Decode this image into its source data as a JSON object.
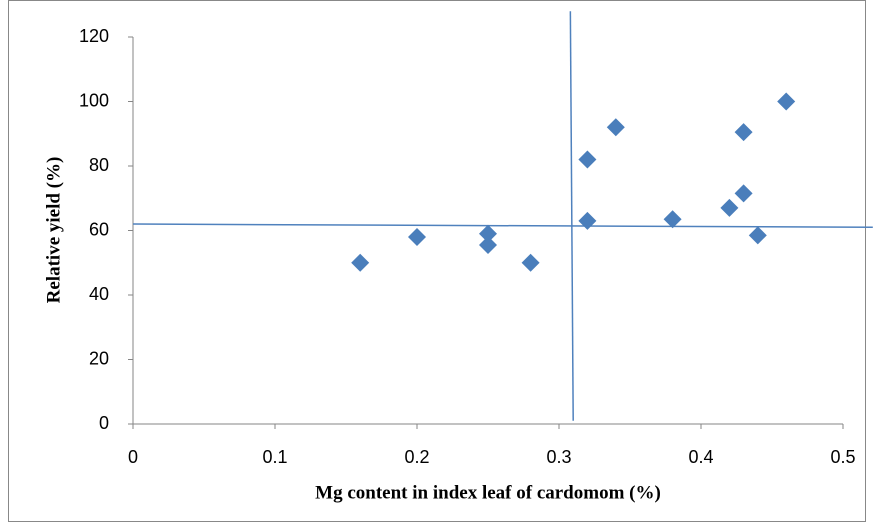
{
  "chart_data": {
    "type": "scatter",
    "x_label": "Mg content in index leaf of cardomom (%)",
    "y_label": "Relative yield  (%)",
    "x": [
      0.16,
      0.2,
      0.25,
      0.25,
      0.28,
      0.32,
      0.32,
      0.34,
      0.38,
      0.42,
      0.43,
      0.43,
      0.44,
      0.46
    ],
    "series": [
      {
        "name": "Relative yield",
        "color": "#4a7ebb",
        "values": [
          50,
          58,
          59,
          55.5,
          50,
          63,
          82,
          92,
          63.5,
          67,
          90.5,
          71.5,
          58.5,
          100
        ]
      }
    ],
    "xlim": [
      0,
      0.5
    ],
    "xticks": [
      0,
      0.1,
      0.2,
      0.3,
      0.4,
      0.5
    ],
    "ylim": [
      0,
      120
    ],
    "yticks": [
      0,
      20,
      40,
      60,
      80,
      100,
      120
    ],
    "grid": false,
    "reference_lines": [
      {
        "x": [
          0.308,
          0.31
        ],
        "y": [
          128,
          1
        ],
        "color": "#4f81bd"
      },
      {
        "x": [
          0,
          0.521
        ],
        "y": [
          62,
          61
        ],
        "color": "#4f81bd"
      }
    ]
  }
}
